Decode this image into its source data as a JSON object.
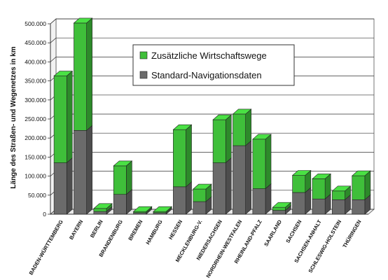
{
  "chart_data": {
    "type": "bar",
    "stacked": true,
    "three_d": true,
    "ylabel": "Länge des Straßen- und Wegenetzes in km",
    "ylim": [
      0,
      500000
    ],
    "yticks": [
      "0",
      "50.000",
      "100.000",
      "150.000",
      "200.000",
      "250.000",
      "300.000",
      "350.000",
      "400.000",
      "450.000",
      "500.000"
    ],
    "grid": true,
    "legend_position": "top-right",
    "categories": [
      "BADEN-WÜRTTEMBERG",
      "BAYERN",
      "BERLIN",
      "BRANDENBURG",
      "BREMEN",
      "HAMBURG",
      "HESSEN",
      "MECKLENBURG-V.",
      "NIEDERSACHSEN",
      "NORDRHEIN-WESTFALEN",
      "RHEINLAND-PFALZ",
      "SAARLAND",
      "SACHSEN",
      "SACHSEN-ANHALT",
      "SCHLESWIG-HOLSTEIN",
      "THÜRINGEN"
    ],
    "series": [
      {
        "name": "Standard-Navigationsdaten",
        "color": "#6b6b6b",
        "values": [
          135000,
          220000,
          7000,
          52000,
          4000,
          4000,
          72000,
          33000,
          135000,
          180000,
          67000,
          10000,
          57000,
          40000,
          38000,
          38000
        ]
      },
      {
        "name": "Zusätzliche Wirtschaftswege",
        "color": "#3fbf3a",
        "values": [
          228000,
          282000,
          8000,
          75000,
          3000,
          3000,
          150000,
          33000,
          113000,
          83000,
          130000,
          8000,
          45000,
          53000,
          23000,
          63000
        ]
      }
    ]
  }
}
